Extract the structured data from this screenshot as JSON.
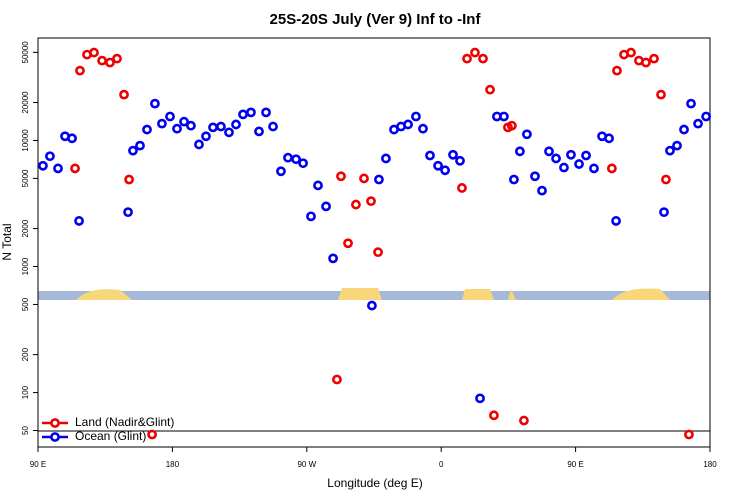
{
  "chart_data": {
    "type": "scatter",
    "title": "25S-20S July (Ver 9)   Inf to -Inf",
    "x_label": "Longitude (deg E)",
    "y_label": "N Total",
    "log_y": true,
    "legend": "bottom-left",
    "xlim": [
      90,
      540
    ],
    "ylim": [
      37,
      65000
    ],
    "xticks": [
      {
        "value": 90,
        "label": "90 E"
      },
      180,
      {
        "value": 270,
        "label": "90 W"
      },
      {
        "value": 360,
        "label": "0"
      },
      {
        "value": 450,
        "label": "90 E"
      },
      {
        "value": 540,
        "label": "180"
      }
    ],
    "yticks": [
      50,
      100,
      200,
      500,
      1000,
      2000,
      5000,
      10000,
      20000,
      50000
    ],
    "series": [
      {
        "name": "Land (Nadir&Glint)",
        "color": "#ee0000",
        "x": [
          114.8,
          118.1,
          122.8,
          127.5,
          132.9,
          138.2,
          142.9,
          147.6,
          151.0,
          166.4,
          290.2,
          292.9,
          297.6,
          302.9,
          308.3,
          313.0,
          317.7,
          373.9,
          377.3,
          382.6,
          388.0,
          392.7,
          395.3,
          404.7,
          407.3,
          415.4,
          474.3,
          477.7,
          482.4,
          487.1,
          492.4,
          497.1,
          502.5,
          507.2,
          510.5,
          525.9
        ],
        "values": [
          6000,
          35800,
          48000,
          49800,
          43000,
          41500,
          44600,
          23100,
          4900,
          46.5,
          127,
          5200,
          1530,
          3100,
          5000,
          3300,
          1300,
          4200,
          44600,
          49800,
          44600,
          25300,
          66,
          12700,
          13100,
          60,
          6000,
          35800,
          48000,
          49800,
          43000,
          41500,
          44600,
          23100,
          4900,
          46.5
        ]
      },
      {
        "name": "Ocean (Glint)",
        "color": "#0000ee",
        "x": [
          93.3,
          98.0,
          103.4,
          108.1,
          112.8,
          117.5,
          150.3,
          153.6,
          158.3,
          163.0,
          168.3,
          173.0,
          178.4,
          183.1,
          187.8,
          192.4,
          197.8,
          202.5,
          207.2,
          212.5,
          217.9,
          222.6,
          227.3,
          232.6,
          238.0,
          242.7,
          247.4,
          252.7,
          257.4,
          262.8,
          267.5,
          272.8,
          277.5,
          282.9,
          287.6,
          313.6,
          318.3,
          323.0,
          328.4,
          333.1,
          337.8,
          343.1,
          347.8,
          352.5,
          357.9,
          362.6,
          367.9,
          372.6,
          386.0,
          397.3,
          402.0,
          408.7,
          412.7,
          417.4,
          422.8,
          427.5,
          432.2,
          436.9,
          442.2,
          446.9,
          452.3,
          457.0,
          462.3,
          467.7,
          472.4,
          477.1,
          509.2,
          513.2,
          517.9,
          522.6,
          527.3,
          532.0,
          537.4
        ],
        "values": [
          6300,
          7500,
          6000,
          10800,
          10400,
          2300,
          2700,
          8300,
          9100,
          12200,
          19600,
          13600,
          15500,
          12400,
          14100,
          13100,
          9300,
          10800,
          12700,
          12900,
          11600,
          13400,
          16100,
          16700,
          11800,
          16700,
          12900,
          5700,
          7300,
          7100,
          6600,
          2500,
          4400,
          3000,
          1160,
          490,
          4900,
          7200,
          12200,
          12900,
          13400,
          15500,
          12400,
          7600,
          6300,
          5800,
          7700,
          6900,
          90,
          15500,
          15500,
          4900,
          8200,
          11200,
          5200,
          4000,
          8200,
          7200,
          6100,
          7700,
          6500,
          7600,
          6000,
          10800,
          10400,
          2300,
          2700,
          8300,
          9100,
          12200,
          19600,
          13600,
          15500
        ]
      }
    ]
  }
}
